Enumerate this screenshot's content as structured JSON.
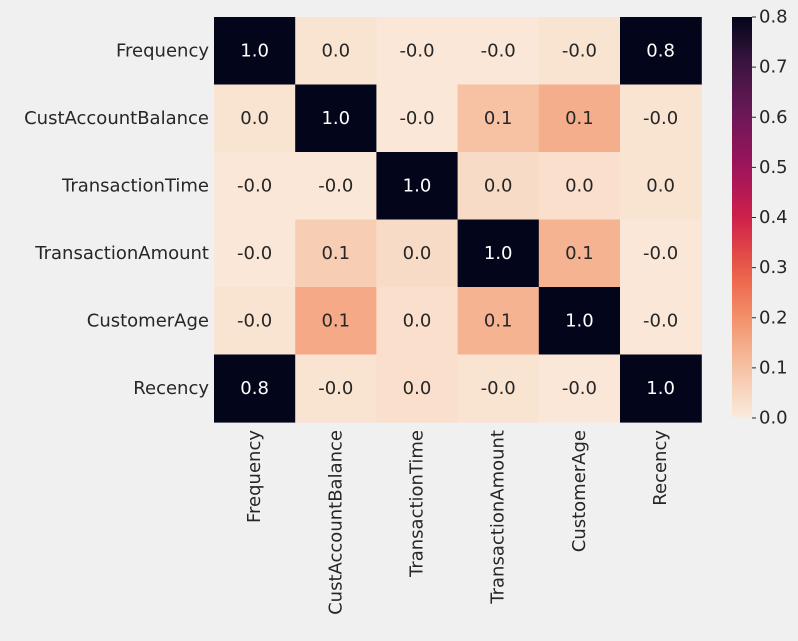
{
  "chart_data": {
    "type": "heatmap",
    "title": "",
    "xlabel": "",
    "ylabel": "",
    "x_labels": [
      "Frequency",
      "CustAccountBalance",
      "TransactionTime",
      "TransactionAmount",
      "CustomerAge",
      "Recency"
    ],
    "y_labels": [
      "Frequency",
      "CustAccountBalance",
      "TransactionTime",
      "TransactionAmount",
      "CustomerAge",
      "Recency"
    ],
    "values": [
      [
        1.0,
        0.0,
        -0.0,
        -0.0,
        -0.0,
        0.8
      ],
      [
        0.0,
        1.0,
        -0.0,
        0.1,
        0.1,
        -0.0
      ],
      [
        -0.0,
        -0.0,
        1.0,
        0.0,
        0.0,
        0.0
      ],
      [
        -0.0,
        0.1,
        0.0,
        1.0,
        0.1,
        -0.0
      ],
      [
        -0.0,
        0.1,
        0.0,
        0.1,
        1.0,
        -0.0
      ],
      [
        0.8,
        -0.0,
        0.0,
        -0.0,
        -0.0,
        1.0
      ]
    ],
    "cell_labels": [
      [
        "1.0",
        "0.0",
        "-0.0",
        "-0.0",
        "-0.0",
        "0.8"
      ],
      [
        "0.0",
        "1.0",
        "-0.0",
        "0.1",
        "0.1",
        "-0.0"
      ],
      [
        "-0.0",
        "-0.0",
        "1.0",
        "0.0",
        "0.0",
        "0.0"
      ],
      [
        "-0.0",
        "0.1",
        "0.0",
        "1.0",
        "0.1",
        "-0.0"
      ],
      [
        "-0.0",
        "0.1",
        "0.0",
        "0.1",
        "1.0",
        "-0.0"
      ],
      [
        "0.8",
        "-0.0",
        "0.0",
        "-0.0",
        "-0.0",
        "1.0"
      ]
    ],
    "shade_values": [
      [
        0.8,
        0.02,
        0.01,
        0.01,
        0.02,
        0.8
      ],
      [
        0.02,
        0.8,
        0.01,
        0.1,
        0.14,
        0.02
      ],
      [
        0.01,
        0.01,
        0.8,
        0.04,
        0.03,
        0.02
      ],
      [
        0.01,
        0.07,
        0.04,
        0.8,
        0.13,
        0.01
      ],
      [
        0.02,
        0.15,
        0.03,
        0.13,
        0.8,
        0.01
      ],
      [
        0.8,
        0.02,
        0.03,
        0.02,
        0.01,
        0.8
      ]
    ],
    "colorbar": {
      "min": 0.0,
      "max": 0.8,
      "ticks": [
        "0.0",
        "0.1",
        "0.2",
        "0.3",
        "0.4",
        "0.5",
        "0.6",
        "0.7",
        "0.8"
      ],
      "tick_values": [
        0.0,
        0.1,
        0.2,
        0.3,
        0.4,
        0.5,
        0.6,
        0.7,
        0.8
      ]
    },
    "colormap": "rocket_r",
    "grid": false,
    "light_text_color": "#ffffff",
    "dark_text_color": "#262626",
    "background_color": "#f0f0f0"
  }
}
